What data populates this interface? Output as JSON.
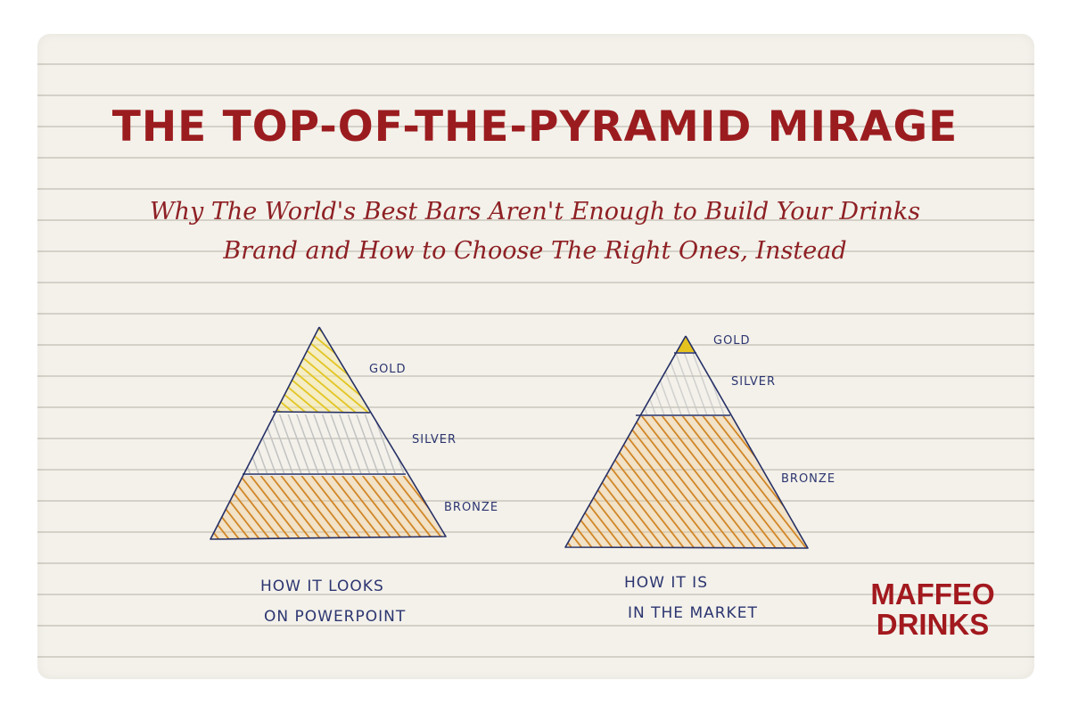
{
  "title": "THE TOP-OF-THE-PYRAMID MIRAGE",
  "subtitle_line1": "Why The World's Best Bars Aren't Enough to Build Your Drinks",
  "subtitle_line2": "Brand and How to Choose The Right Ones, Instead",
  "left_pyramid": {
    "levels": [
      "GOLD",
      "SILVER",
      "BRONZE"
    ],
    "caption_line1": "HOW IT LOOKS",
    "caption_line2": "ON POWERPOINT"
  },
  "right_pyramid": {
    "levels": [
      "GOLD",
      "SILVER",
      "BRONZE"
    ],
    "caption_line1": "HOW IT IS",
    "caption_line2": "IN THE MARKET"
  },
  "brand": {
    "line1": "MAFFEO",
    "line2": "DRINKS"
  },
  "colors": {
    "title": "#9b1c1f",
    "subtitle": "#8e2024",
    "gold": "#e8cc2a",
    "silver": "#c4c4c4",
    "bronze": "#d38a25",
    "ink": "#2c3570",
    "brand": "#a2191e"
  }
}
